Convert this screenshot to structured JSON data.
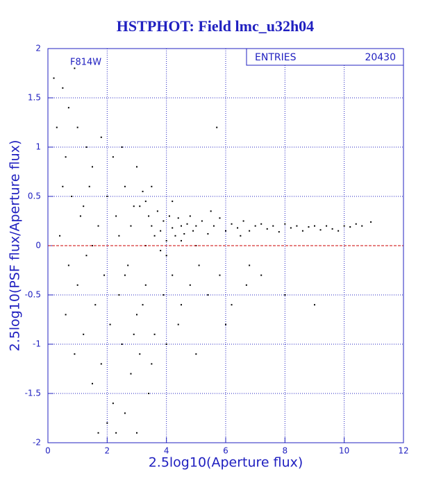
{
  "chart_data": {
    "type": "scatter",
    "title": "HSTPHOT: Field lmc_u32h04",
    "x_label": "2.5log10(Aperture flux)",
    "y_label": "2.5log10(PSF flux/Aperture flux)",
    "annotation": "F814W",
    "stats": {
      "label": "ENTRIES",
      "value": 20430
    },
    "xlim": [
      0,
      12
    ],
    "ylim": [
      -2,
      2
    ],
    "xticks": [
      0,
      2,
      4,
      6,
      8,
      10,
      12
    ],
    "yticks": [
      -2,
      -1.5,
      -1,
      -0.5,
      0,
      0.5,
      1,
      1.5,
      2
    ],
    "grid": true,
    "reference_line": {
      "value": 0,
      "color": "#cc0000"
    },
    "series": [
      {
        "color": "#000000",
        "x": [
          3.3,
          3.4,
          3.5,
          3.6,
          3.7,
          3.8,
          3.9,
          4.0,
          4.1,
          4.2,
          4.3,
          4.4,
          4.5,
          4.6,
          4.7,
          4.8,
          4.9,
          5.0,
          5.2,
          5.4,
          5.6,
          5.8,
          6.0,
          6.2,
          6.4,
          6.6,
          6.8,
          7.0,
          7.2,
          7.4,
          7.6,
          7.8,
          8.0,
          8.2,
          8.4,
          8.6,
          8.8,
          9.0,
          9.2,
          9.4,
          9.6,
          9.8,
          10.0,
          10.2,
          10.4,
          10.6,
          10.9,
          3.2,
          3.1,
          4.5,
          5.5,
          6.5,
          4.0,
          3.8,
          5.0,
          4.2,
          3.5,
          3.3,
          0.2,
          0.5,
          0.7,
          0.9,
          1.0,
          1.3,
          1.5,
          1.8,
          2.2,
          2.5,
          0.3,
          0.6,
          0.8,
          1.1,
          1.4,
          1.7,
          2.0,
          2.3,
          2.6,
          2.9,
          0.4,
          0.7,
          1.0,
          1.3,
          1.6,
          1.9,
          2.1,
          2.4,
          2.7,
          3.0,
          3.3,
          3.6,
          3.9,
          4.2,
          4.5,
          4.8,
          5.1,
          5.4,
          5.8,
          6.2,
          6.7,
          7.2,
          8.0,
          9.0,
          2.5,
          2.8,
          3.1,
          3.4,
          2.2,
          1.8,
          1.5,
          1.2,
          0.9,
          0.6,
          2.0,
          2.3,
          2.6,
          3.0,
          1.7,
          3.5,
          4.0,
          4.4,
          5.0,
          2.6,
          2.9,
          3.2,
          2.4,
          2.8,
          1.5,
          1.2,
          0.5,
          5.7,
          3.0,
          6.0,
          6.8
        ],
        "y": [
          0.45,
          0.3,
          0.2,
          0.1,
          0.35,
          0.15,
          0.25,
          0.05,
          0.3,
          0.18,
          0.1,
          0.28,
          0.2,
          0.12,
          0.22,
          0.3,
          0.15,
          0.2,
          0.25,
          0.12,
          0.2,
          0.28,
          0.15,
          0.22,
          0.18,
          0.25,
          0.15,
          0.2,
          0.22,
          0.17,
          0.2,
          0.14,
          0.22,
          0.18,
          0.2,
          0.15,
          0.19,
          0.2,
          0.16,
          0.2,
          0.17,
          0.15,
          0.2,
          0.19,
          0.22,
          0.2,
          0.24,
          0.55,
          0.4,
          0.05,
          0.35,
          0.1,
          -0.1,
          -0.05,
          0.0,
          0.45,
          0.6,
          0.0,
          1.7,
          1.6,
          1.4,
          1.8,
          1.2,
          1.0,
          0.8,
          1.1,
          0.9,
          1.0,
          1.2,
          0.9,
          0.5,
          0.3,
          0.6,
          0.2,
          0.5,
          0.3,
          0.6,
          0.4,
          0.1,
          -0.2,
          -0.4,
          -0.1,
          -0.6,
          -0.3,
          -0.8,
          -0.5,
          -0.2,
          -0.7,
          -0.4,
          -0.9,
          -0.5,
          -0.3,
          -0.6,
          -0.4,
          -0.2,
          -0.5,
          -0.3,
          -0.6,
          -0.4,
          -0.3,
          -0.5,
          -0.6,
          -1.0,
          -1.3,
          -1.1,
          -1.5,
          -1.6,
          -1.2,
          -1.4,
          -0.9,
          -1.1,
          -0.7,
          -1.8,
          -1.9,
          -1.7,
          -1.9,
          -1.9,
          -1.2,
          -1.0,
          -0.8,
          -1.1,
          -0.3,
          -0.9,
          -0.6,
          0.1,
          0.2,
          0.0,
          0.4,
          0.6,
          1.2,
          0.8,
          -0.8,
          -0.2
        ]
      }
    ]
  }
}
